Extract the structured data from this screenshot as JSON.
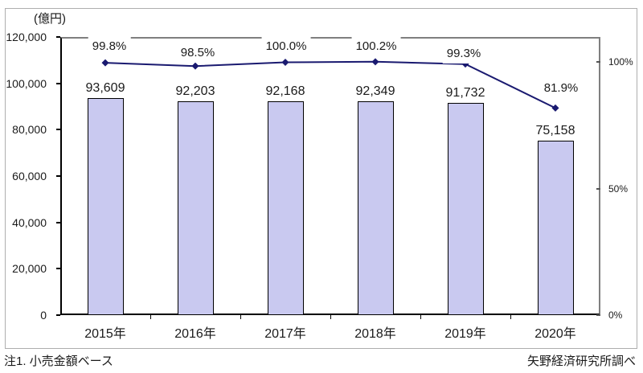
{
  "unit_label": "(億円)",
  "footnotes": {
    "left": "注1. 小売金額ベース",
    "right": "矢野経済研究所調べ"
  },
  "chart_data": {
    "type": "bar",
    "subtype": "bar+line combo",
    "categories": [
      "2015年",
      "2016年",
      "2017年",
      "2018年",
      "2019年",
      "2020年"
    ],
    "series": [
      {
        "name": "bar-series",
        "type": "bar",
        "axis": "left",
        "values": [
          93609,
          92203,
          92168,
          92349,
          91732,
          75158
        ],
        "data_labels": [
          "93,609",
          "92,203",
          "92,168",
          "92,349",
          "91,732",
          "75,158"
        ],
        "fill_color": "#C9C9F0",
        "border_color": "#000000"
      },
      {
        "name": "line-series",
        "type": "line",
        "axis": "right",
        "values": [
          99.8,
          98.5,
          100.0,
          100.2,
          99.3,
          81.9
        ],
        "data_labels": [
          "99.8%",
          "98.5%",
          "100.0%",
          "100.2%",
          "99.3%",
          "81.9%"
        ],
        "line_color": "#1A1A70",
        "marker": "diamond"
      }
    ],
    "left_axis": {
      "unit": "(億円)",
      "min": 0,
      "max": 120000,
      "step": 20000,
      "tick_labels": [
        "120,000",
        "100,000",
        "80,000",
        "60,000",
        "40,000",
        "20,000",
        "0"
      ]
    },
    "right_axis": {
      "min": 0,
      "display_max": 110,
      "ticks": [
        100,
        50,
        0
      ],
      "tick_labels": [
        "100%",
        "50%",
        "0%"
      ]
    },
    "grid": false,
    "legend": "none",
    "layout": {
      "pct_label_dx": [
        5,
        3,
        1,
        1,
        -2,
        7
      ],
      "pct_label_dy": [
        33,
        29,
        32,
        32,
        26,
        37
      ]
    }
  }
}
